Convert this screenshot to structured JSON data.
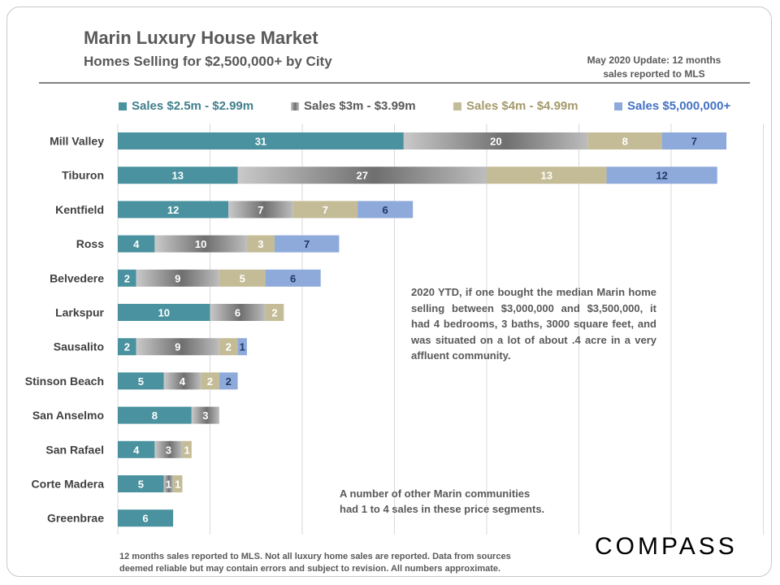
{
  "header": {
    "title": "Marin Luxury House Market",
    "subtitle": "Homes Selling for $2,500,000+ by City",
    "update_line1": "May 2020  Update: 12 months",
    "update_line2": "sales reported to MLS"
  },
  "chart_data": {
    "type": "bar",
    "orientation": "horizontal",
    "stacked": true,
    "categories": [
      "Mill Valley",
      "Tiburon",
      "Kentfield",
      "Ross",
      "Belvedere",
      "Larkspur",
      "Sausalito",
      "Stinson Beach",
      "San Anselmo",
      "San Rafael",
      "Corte Madera",
      "Greenbrae"
    ],
    "series": [
      {
        "name": "Sales $2.5m - $2.99m",
        "color": "#4a929f",
        "label_color": "#ffffff",
        "values": [
          31,
          13,
          12,
          4,
          2,
          10,
          2,
          5,
          8,
          4,
          5,
          6
        ]
      },
      {
        "name": "Sales $3m - $3.99m",
        "color": "#8a8a8a",
        "label_color": "#ffffff",
        "values": [
          20,
          27,
          7,
          10,
          9,
          6,
          9,
          4,
          3,
          3,
          1,
          null
        ]
      },
      {
        "name": "Sales $4m - $4.99m",
        "color": "#c4bc96",
        "label_color": "#ffffff",
        "values": [
          8,
          13,
          7,
          3,
          5,
          2,
          2,
          2,
          null,
          1,
          1,
          null
        ]
      },
      {
        "name": "Sales $5,000,000+",
        "color": "#8eaadb",
        "label_color": "#1f3864",
        "values": [
          7,
          12,
          6,
          7,
          6,
          null,
          1,
          2,
          null,
          null,
          null,
          null
        ]
      }
    ],
    "legend_position": "top",
    "xlim": [
      0,
      70
    ],
    "grid": true
  },
  "notes": {
    "median": "2020 YTD, if one bought the median Marin home selling between $3,000,000 and $3,500,000, it had 4 bedrooms, 3 baths, 3000 square feet, and was situated on a lot of about .4 acre in a very affluent community.",
    "other_line1": "A number of other Marin communities",
    "other_line2": "had 1 to 4 sales in these price segments."
  },
  "footer": {
    "line1": "12 months sales reported to MLS. Not all luxury home sales are reported. Data from sources",
    "line2": "deemed reliable but may contain errors and subject to revision. All numbers approximate."
  },
  "brand": {
    "logo": "COMPASS"
  }
}
